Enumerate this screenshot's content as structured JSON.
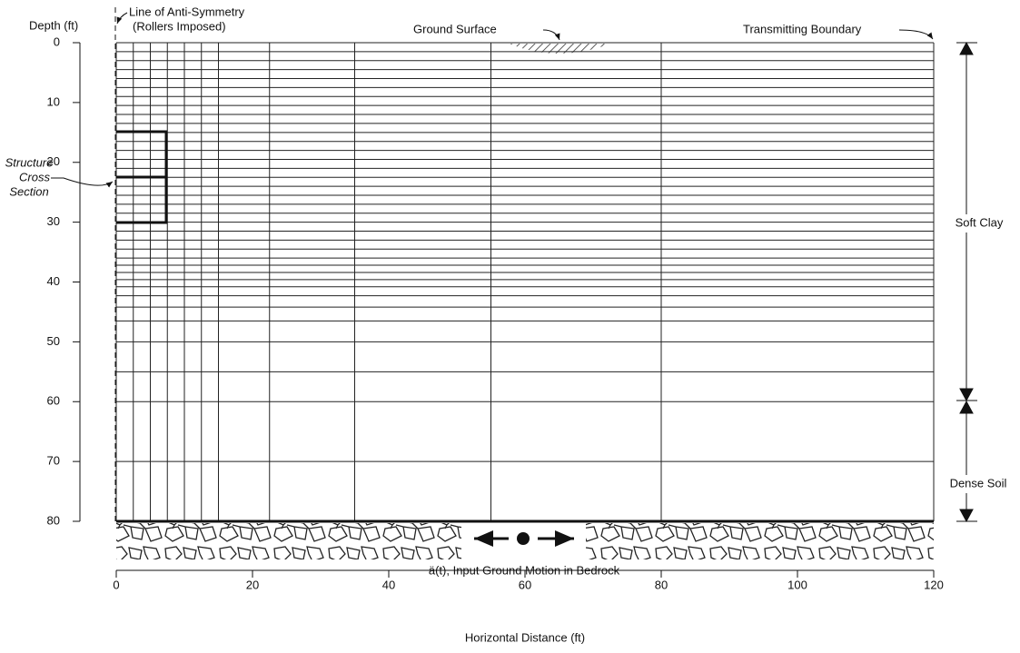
{
  "y_axis": {
    "title": "Depth (ft)",
    "ticks": [
      "0",
      "10",
      "20",
      "30",
      "40",
      "50",
      "60",
      "70",
      "80"
    ]
  },
  "x_axis": {
    "title": "Horizontal Distance (ft)",
    "ticks": [
      "0",
      "20",
      "40",
      "60",
      "80",
      "100",
      "120"
    ]
  },
  "annotations": {
    "anti_symmetry": [
      "Line of Anti-Symmetry",
      "(Rollers Imposed)"
    ],
    "ground_surface": "Ground Surface",
    "transmitting_boundary": "Transmitting Boundary",
    "structure": [
      "Structure",
      "Cross",
      "Section"
    ],
    "soft_clay": "Soft Clay",
    "dense_soil": "Dense Soil",
    "input_motion": "ä(t), Input Ground Motion in Bedrock"
  }
}
